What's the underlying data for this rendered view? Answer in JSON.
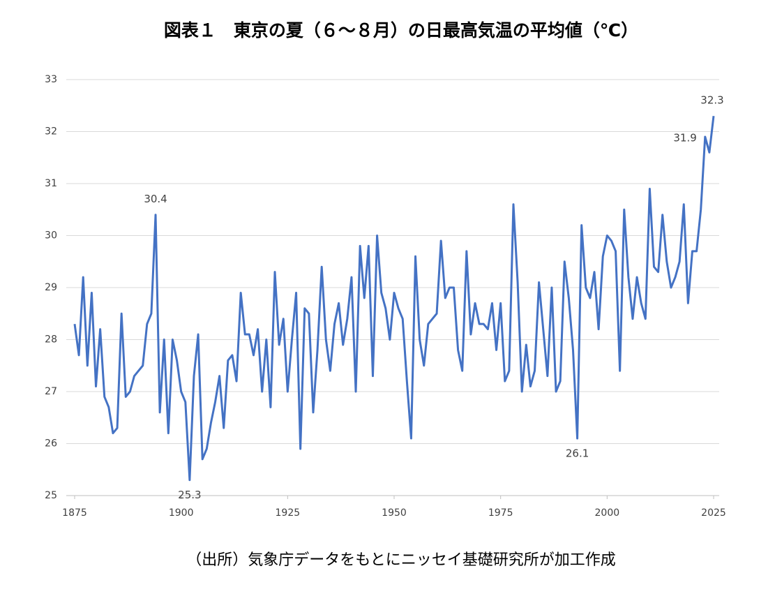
{
  "chart_data": {
    "type": "line",
    "title": "図表１　東京の夏（６～８月）の日最高気温の平均値（℃）",
    "source": "（出所）気象庁データをもとにニッセイ基礎研究所が加工作成",
    "x": [
      1875,
      1876,
      1877,
      1878,
      1879,
      1880,
      1881,
      1882,
      1883,
      1884,
      1885,
      1886,
      1887,
      1888,
      1889,
      1890,
      1891,
      1892,
      1893,
      1894,
      1895,
      1896,
      1897,
      1898,
      1899,
      1900,
      1901,
      1902,
      1903,
      1904,
      1905,
      1906,
      1907,
      1908,
      1909,
      1910,
      1911,
      1912,
      1913,
      1914,
      1915,
      1916,
      1917,
      1918,
      1919,
      1920,
      1921,
      1922,
      1923,
      1924,
      1925,
      1926,
      1927,
      1928,
      1929,
      1930,
      1931,
      1932,
      1933,
      1934,
      1935,
      1936,
      1937,
      1938,
      1939,
      1940,
      1941,
      1942,
      1943,
      1944,
      1945,
      1946,
      1947,
      1948,
      1949,
      1950,
      1951,
      1952,
      1953,
      1954,
      1955,
      1956,
      1957,
      1958,
      1959,
      1960,
      1961,
      1962,
      1963,
      1964,
      1965,
      1966,
      1967,
      1968,
      1969,
      1970,
      1971,
      1972,
      1973,
      1974,
      1975,
      1976,
      1977,
      1978,
      1979,
      1980,
      1981,
      1982,
      1983,
      1984,
      1985,
      1986,
      1987,
      1988,
      1989,
      1990,
      1991,
      1992,
      1993,
      1994,
      1995,
      1996,
      1997,
      1998,
      1999,
      2000,
      2001,
      2002,
      2003,
      2004,
      2005,
      2006,
      2007,
      2008,
      2009,
      2010,
      2011,
      2012,
      2013,
      2014,
      2015,
      2016,
      2017,
      2018,
      2019,
      2020,
      2021,
      2022,
      2023,
      2024,
      2025
    ],
    "series": [
      {
        "name": "日最高気温の平均値",
        "color": "#4472c4",
        "values": [
          28.3,
          27.7,
          29.2,
          27.5,
          28.9,
          27.1,
          28.2,
          26.9,
          26.7,
          26.2,
          26.3,
          28.5,
          26.9,
          27.0,
          27.3,
          27.4,
          27.5,
          28.3,
          28.5,
          30.4,
          26.6,
          28.0,
          26.2,
          28.0,
          27.6,
          27.0,
          26.8,
          25.3,
          27.3,
          28.1,
          25.7,
          25.9,
          26.4,
          26.8,
          27.3,
          26.3,
          27.6,
          27.7,
          27.2,
          28.9,
          28.1,
          28.1,
          27.7,
          28.2,
          27.0,
          28.0,
          26.7,
          29.3,
          27.9,
          28.4,
          27.0,
          28.0,
          28.9,
          25.9,
          28.6,
          28.5,
          26.6,
          27.8,
          29.4,
          28.0,
          27.4,
          28.3,
          28.7,
          27.9,
          28.4,
          29.2,
          27.0,
          29.8,
          28.8,
          29.8,
          27.3,
          30.0,
          28.9,
          28.6,
          28.0,
          28.9,
          28.6,
          28.4,
          27.2,
          26.1,
          29.6,
          28.0,
          27.5,
          28.3,
          28.4,
          28.5,
          29.9,
          28.8,
          29.0,
          29.0,
          27.8,
          27.4,
          29.7,
          28.1,
          28.7,
          28.3,
          28.3,
          28.2,
          28.7,
          27.8,
          28.7,
          27.2,
          27.4,
          30.6,
          29.1,
          27.0,
          27.9,
          27.1,
          27.4,
          29.1,
          28.2,
          27.3,
          29.0,
          27.0,
          27.2,
          29.5,
          28.8,
          27.8,
          26.1,
          30.2,
          29.0,
          28.8,
          29.3,
          28.2,
          29.6,
          30.0,
          29.9,
          29.7,
          27.4,
          30.5,
          29.2,
          28.4,
          29.2,
          28.7,
          28.4,
          30.9,
          29.4,
          29.3,
          30.4,
          29.5,
          29.0,
          29.2,
          29.5,
          30.6,
          28.7,
          29.7,
          29.7,
          30.5,
          31.9,
          31.6,
          32.3
        ]
      }
    ],
    "annotations": [
      {
        "x": 1894,
        "text": "30.4"
      },
      {
        "x": 1902,
        "text": "25.3"
      },
      {
        "x": 1993,
        "text": "26.1"
      },
      {
        "x": 2023,
        "text": "31.9"
      },
      {
        "x": 2025,
        "text": "32.3"
      }
    ],
    "xlim": [
      1875,
      2025
    ],
    "xticks": [
      1875,
      1900,
      1925,
      1950,
      1975,
      2000,
      2025
    ],
    "ylim": [
      25,
      33
    ],
    "yticks": [
      25,
      26,
      27,
      28,
      29,
      30,
      31,
      32,
      33
    ],
    "grid": true
  }
}
